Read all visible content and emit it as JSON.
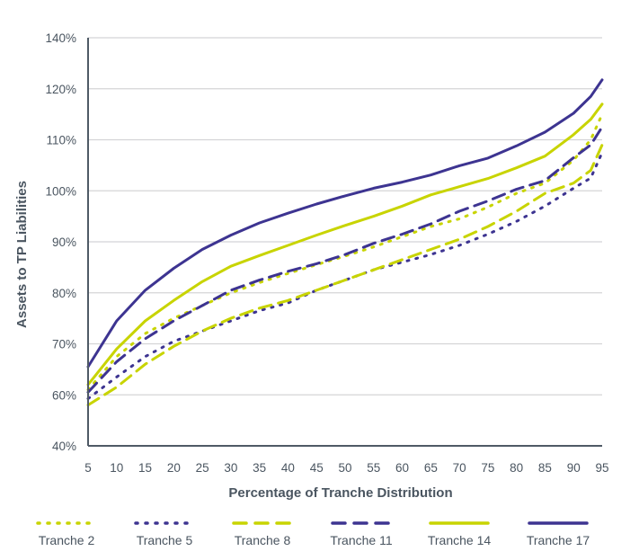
{
  "chart_data": {
    "type": "line",
    "title": "",
    "xlabel": "Percentage of Tranche Distribution",
    "ylabel": "Assets to TP Liabilities",
    "x_ticks": [
      "5",
      "10",
      "15",
      "20",
      "25",
      "30",
      "35",
      "40",
      "45",
      "50",
      "55",
      "60",
      "65",
      "70",
      "75",
      "80",
      "85",
      "90",
      "95"
    ],
    "y_ticks": [
      "40%",
      "60%",
      "70%",
      "80%",
      "90%",
      "100%",
      "110%",
      "120%",
      "140%"
    ],
    "y_tick_values": [
      40,
      60,
      70,
      80,
      90,
      100,
      110,
      120,
      140
    ],
    "xlim": [
      5,
      95
    ],
    "ylim": [
      40,
      140
    ],
    "grid": "horizontal",
    "legend_position": "bottom",
    "x": [
      5,
      10,
      15,
      20,
      25,
      30,
      35,
      40,
      45,
      50,
      55,
      60,
      65,
      70,
      75,
      80,
      85,
      90,
      93,
      95
    ],
    "series": [
      {
        "name": "Tranche 2",
        "color": "#c8d400",
        "style": "dotted",
        "values": [
          61,
          67.5,
          72,
          75,
          77.5,
          80,
          82,
          83.8,
          85.5,
          87.2,
          89,
          91,
          93,
          94.5,
          96.8,
          99.5,
          101.5,
          106,
          110,
          115
        ]
      },
      {
        "name": "Tranche 5",
        "color": "#3d3491",
        "style": "dotted",
        "values": [
          58.5,
          63.5,
          67.5,
          70.5,
          72.5,
          74.5,
          76.5,
          78,
          80.5,
          82.5,
          84.5,
          86,
          87.5,
          89.3,
          91.5,
          94,
          97,
          100.5,
          102.5,
          107.5
        ]
      },
      {
        "name": "Tranche 8",
        "color": "#c8d400",
        "style": "dashed",
        "values": [
          56,
          61.5,
          66,
          69.5,
          72.5,
          75,
          77,
          78.5,
          80.5,
          82.5,
          84.5,
          86.5,
          88.5,
          90.5,
          93,
          96,
          99.5,
          101.5,
          104,
          109
        ]
      },
      {
        "name": "Tranche 11",
        "color": "#3d3491",
        "style": "dashed",
        "values": [
          60.5,
          66.5,
          71,
          74.5,
          77.5,
          80.5,
          82.5,
          84.2,
          85.7,
          87.5,
          89.7,
          91.5,
          93.5,
          96,
          98,
          100.3,
          102,
          106.5,
          109,
          112.5
        ]
      },
      {
        "name": "Tranche 14",
        "color": "#c8d400",
        "style": "solid",
        "values": [
          62,
          69,
          74.5,
          78.5,
          82.2,
          85.2,
          87.3,
          89.3,
          91.3,
          93.2,
          95,
          97,
          99.2,
          100.8,
          102.4,
          104.5,
          106.8,
          111,
          114,
          117
        ]
      },
      {
        "name": "Tranche 17",
        "color": "#3d3491",
        "style": "solid",
        "values": [
          65.5,
          74.5,
          80.5,
          84.8,
          88.5,
          91.3,
          93.7,
          95.6,
          97.4,
          99,
          100.5,
          101.7,
          103.1,
          104.9,
          106.4,
          108.8,
          111.5,
          115.2,
          118.5,
          123.5
        ]
      }
    ]
  }
}
